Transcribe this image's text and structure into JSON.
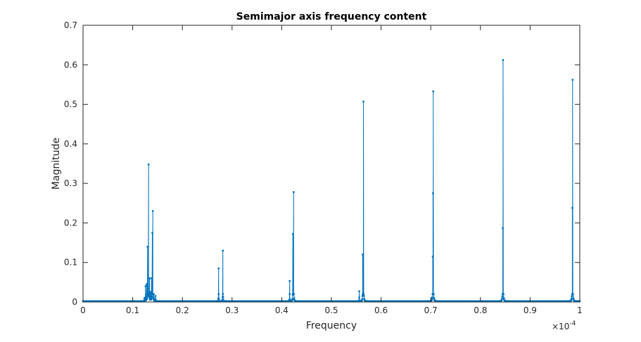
{
  "chart_data": {
    "type": "line",
    "title": "Semimajor axis frequency content",
    "xlabel": "Frequency",
    "ylabel": "Magnitude",
    "x_exponent_label": "×10",
    "x_exponent_power": "-4",
    "xlim": [
      0,
      1
    ],
    "ylim": [
      0,
      0.7
    ],
    "xticks": [
      0,
      0.1,
      0.2,
      0.3,
      0.4,
      0.5,
      0.6,
      0.7,
      0.8,
      0.9,
      1
    ],
    "xtick_labels": [
      "0",
      "0.1",
      "0.2",
      "0.3",
      "0.4",
      "0.5",
      "0.6",
      "0.7",
      "0.8",
      "0.9",
      "1"
    ],
    "yticks": [
      0,
      0.1,
      0.2,
      0.3,
      0.4,
      0.5,
      0.6,
      0.7
    ],
    "ytick_labels": [
      "0",
      "0.1",
      "0.2",
      "0.3",
      "0.4",
      "0.5",
      "0.6",
      "0.7"
    ],
    "grid": false,
    "marker": "dot",
    "line_color": "#0072BD",
    "peaks": [
      {
        "x": 0.1236,
        "y": 0.01
      },
      {
        "x": 0.1258,
        "y": 0.04
      },
      {
        "x": 0.128,
        "y": 0.045
      },
      {
        "x": 0.13,
        "y": 0.14
      },
      {
        "x": 0.132,
        "y": 0.348
      },
      {
        "x": 0.134,
        "y": 0.06
      },
      {
        "x": 0.136,
        "y": 0.025
      },
      {
        "x": 0.138,
        "y": 0.06
      },
      {
        "x": 0.1395,
        "y": 0.175
      },
      {
        "x": 0.1405,
        "y": 0.23
      },
      {
        "x": 0.1425,
        "y": 0.02
      },
      {
        "x": 0.146,
        "y": 0.015
      },
      {
        "x": 0.273,
        "y": 0.085
      },
      {
        "x": 0.2815,
        "y": 0.13
      },
      {
        "x": 0.416,
        "y": 0.053
      },
      {
        "x": 0.4225,
        "y": 0.172
      },
      {
        "x": 0.424,
        "y": 0.278
      },
      {
        "x": 0.556,
        "y": 0.027
      },
      {
        "x": 0.563,
        "y": 0.12
      },
      {
        "x": 0.5645,
        "y": 0.507
      },
      {
        "x": 0.704,
        "y": 0.115
      },
      {
        "x": 0.7045,
        "y": 0.275
      },
      {
        "x": 0.705,
        "y": 0.533
      },
      {
        "x": 0.845,
        "y": 0.187
      },
      {
        "x": 0.8455,
        "y": 0.612
      },
      {
        "x": 0.985,
        "y": 0.238
      },
      {
        "x": 0.9855,
        "y": 0.562
      }
    ]
  },
  "colors": {
    "series": "#0072BD",
    "axes": "#262626",
    "background": "#ffffff"
  }
}
